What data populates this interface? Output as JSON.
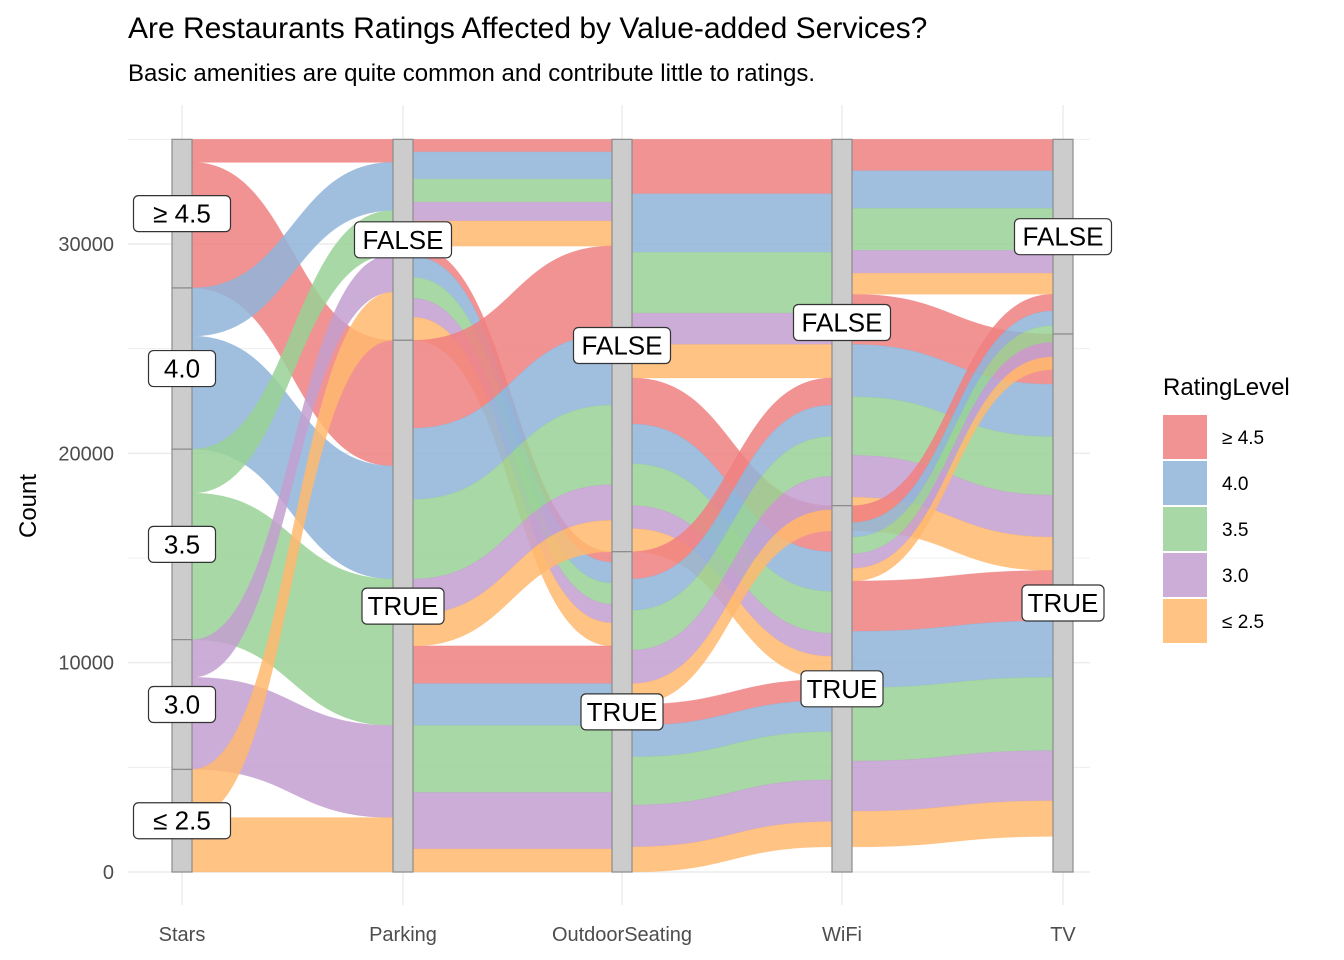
{
  "chart_title": "Are Restaurants Ratings Affected by Value-added Services?",
  "chart_subtitle": "Basic amenities are quite common and contribute little to ratings.",
  "colors": {
    "≥ 4.5": "#f08080",
    "4.0": "#8fb4d9",
    "3.5": "#99d195",
    "3.0": "#c39fd0",
    "≤ 2.5": "#ffb86f",
    "stratum_fill": "#cccccc",
    "stratum_stroke": "#8c8c8c",
    "grid": "#ebebeb"
  },
  "chart_data": {
    "type": "alluvial",
    "ylabel": "Count",
    "xlabel": "",
    "ylim": [
      0,
      35000
    ],
    "y_ticks": [
      0,
      10000,
      20000,
      30000
    ],
    "axes": [
      "Stars",
      "Parking",
      "OutdoorSeating",
      "WiFi",
      "TV"
    ],
    "legend": {
      "title": "RatingLevel",
      "position": "right",
      "levels": [
        "≥ 4.5",
        "4.0",
        "3.5",
        "3.0",
        "≤ 2.5"
      ]
    },
    "strata": [
      {
        "axis": "Stars",
        "levels": [
          {
            "label": "≥ 4.5",
            "min": 27900,
            "max": 35000
          },
          {
            "label": "4.0",
            "min": 20200,
            "max": 27900
          },
          {
            "label": "3.5",
            "min": 11100,
            "max": 20200
          },
          {
            "label": "3.0",
            "min": 4900,
            "max": 11100
          },
          {
            "label": "≤ 2.5",
            "min": 0,
            "max": 4900
          }
        ]
      },
      {
        "axis": "Parking",
        "levels": [
          {
            "label": "FALSE",
            "min": 25400,
            "max": 35000
          },
          {
            "label": "TRUE",
            "min": 0,
            "max": 25400
          }
        ]
      },
      {
        "axis": "OutdoorSeating",
        "levels": [
          {
            "label": "FALSE",
            "min": 15300,
            "max": 35000
          },
          {
            "label": "TRUE",
            "min": 0,
            "max": 15300
          }
        ]
      },
      {
        "axis": "WiFi",
        "levels": [
          {
            "label": "FALSE",
            "min": 17500,
            "max": 35000
          },
          {
            "label": "TRUE",
            "min": 0,
            "max": 17500
          }
        ]
      },
      {
        "axis": "TV",
        "levels": [
          {
            "label": "FALSE",
            "min": 25700,
            "max": 35000
          },
          {
            "label": "TRUE",
            "min": 0,
            "max": 25700
          }
        ]
      }
    ],
    "flows": [
      {
        "from_axis": "Stars",
        "to_axis": "Parking",
        "rating": "≥ 4.5",
        "from": "≥ 4.5",
        "to": "FALSE",
        "count": 1100
      },
      {
        "from_axis": "Stars",
        "to_axis": "Parking",
        "rating": "≥ 4.5",
        "from": "≥ 4.5",
        "to": "TRUE",
        "count": 6000
      },
      {
        "from_axis": "Stars",
        "to_axis": "Parking",
        "rating": "4.0",
        "from": "4.0",
        "to": "FALSE",
        "count": 2300
      },
      {
        "from_axis": "Stars",
        "to_axis": "Parking",
        "rating": "4.0",
        "from": "4.0",
        "to": "TRUE",
        "count": 5400
      },
      {
        "from_axis": "Stars",
        "to_axis": "Parking",
        "rating": "3.5",
        "from": "3.5",
        "to": "FALSE",
        "count": 2100
      },
      {
        "from_axis": "Stars",
        "to_axis": "Parking",
        "rating": "3.5",
        "from": "3.5",
        "to": "TRUE",
        "count": 7000
      },
      {
        "from_axis": "Stars",
        "to_axis": "Parking",
        "rating": "3.0",
        "from": "3.0",
        "to": "FALSE",
        "count": 1800
      },
      {
        "from_axis": "Stars",
        "to_axis": "Parking",
        "rating": "3.0",
        "from": "3.0",
        "to": "TRUE",
        "count": 4400
      },
      {
        "from_axis": "Stars",
        "to_axis": "Parking",
        "rating": "≤ 2.5",
        "from": "≤ 2.5",
        "to": "FALSE",
        "count": 2300
      },
      {
        "from_axis": "Stars",
        "to_axis": "Parking",
        "rating": "≤ 2.5",
        "from": "≤ 2.5",
        "to": "TRUE",
        "count": 2600
      },
      {
        "from_axis": "Parking",
        "to_axis": "OutdoorSeating",
        "rating": "≥ 4.5",
        "from": "FALSE",
        "to": "FALSE",
        "count": 600
      },
      {
        "from_axis": "Parking",
        "to_axis": "OutdoorSeating",
        "rating": "≥ 4.5",
        "from": "FALSE",
        "to": "TRUE",
        "count": 500
      },
      {
        "from_axis": "Parking",
        "to_axis": "OutdoorSeating",
        "rating": "4.0",
        "from": "FALSE",
        "to": "FALSE",
        "count": 1300
      },
      {
        "from_axis": "Parking",
        "to_axis": "OutdoorSeating",
        "rating": "4.0",
        "from": "FALSE",
        "to": "TRUE",
        "count": 1000
      },
      {
        "from_axis": "Parking",
        "to_axis": "OutdoorSeating",
        "rating": "3.5",
        "from": "FALSE",
        "to": "FALSE",
        "count": 1100
      },
      {
        "from_axis": "Parking",
        "to_axis": "OutdoorSeating",
        "rating": "3.5",
        "from": "FALSE",
        "to": "TRUE",
        "count": 1000
      },
      {
        "from_axis": "Parking",
        "to_axis": "OutdoorSeating",
        "rating": "3.0",
        "from": "FALSE",
        "to": "FALSE",
        "count": 900
      },
      {
        "from_axis": "Parking",
        "to_axis": "OutdoorSeating",
        "rating": "3.0",
        "from": "FALSE",
        "to": "TRUE",
        "count": 900
      },
      {
        "from_axis": "Parking",
        "to_axis": "OutdoorSeating",
        "rating": "≤ 2.5",
        "from": "FALSE",
        "to": "FALSE",
        "count": 1200
      },
      {
        "from_axis": "Parking",
        "to_axis": "OutdoorSeating",
        "rating": "≤ 2.5",
        "from": "FALSE",
        "to": "TRUE",
        "count": 1100
      },
      {
        "from_axis": "Parking",
        "to_axis": "OutdoorSeating",
        "rating": "≥ 4.5",
        "from": "TRUE",
        "to": "FALSE",
        "count": 4200
      },
      {
        "from_axis": "Parking",
        "to_axis": "OutdoorSeating",
        "rating": "≥ 4.5",
        "from": "TRUE",
        "to": "TRUE",
        "count": 1800
      },
      {
        "from_axis": "Parking",
        "to_axis": "OutdoorSeating",
        "rating": "4.0",
        "from": "TRUE",
        "to": "FALSE",
        "count": 3400
      },
      {
        "from_axis": "Parking",
        "to_axis": "OutdoorSeating",
        "rating": "4.0",
        "from": "TRUE",
        "to": "TRUE",
        "count": 2000
      },
      {
        "from_axis": "Parking",
        "to_axis": "OutdoorSeating",
        "rating": "3.5",
        "from": "TRUE",
        "to": "FALSE",
        "count": 3800
      },
      {
        "from_axis": "Parking",
        "to_axis": "OutdoorSeating",
        "rating": "3.5",
        "from": "TRUE",
        "to": "TRUE",
        "count": 3200
      },
      {
        "from_axis": "Parking",
        "to_axis": "OutdoorSeating",
        "rating": "3.0",
        "from": "TRUE",
        "to": "FALSE",
        "count": 1700
      },
      {
        "from_axis": "Parking",
        "to_axis": "OutdoorSeating",
        "rating": "3.0",
        "from": "TRUE",
        "to": "TRUE",
        "count": 2700
      },
      {
        "from_axis": "Parking",
        "to_axis": "OutdoorSeating",
        "rating": "≤ 2.5",
        "from": "TRUE",
        "to": "FALSE",
        "count": 1500
      },
      {
        "from_axis": "Parking",
        "to_axis": "OutdoorSeating",
        "rating": "≤ 2.5",
        "from": "TRUE",
        "to": "TRUE",
        "count": 1100
      },
      {
        "from_axis": "OutdoorSeating",
        "to_axis": "WiFi",
        "rating": "≥ 4.5",
        "from": "FALSE",
        "to": "FALSE",
        "count": 2600
      },
      {
        "from_axis": "OutdoorSeating",
        "to_axis": "WiFi",
        "rating": "≥ 4.5",
        "from": "FALSE",
        "to": "TRUE",
        "count": 2200
      },
      {
        "from_axis": "OutdoorSeating",
        "to_axis": "WiFi",
        "rating": "4.0",
        "from": "FALSE",
        "to": "FALSE",
        "count": 2800
      },
      {
        "from_axis": "OutdoorSeating",
        "to_axis": "WiFi",
        "rating": "4.0",
        "from": "FALSE",
        "to": "TRUE",
        "count": 1900
      },
      {
        "from_axis": "OutdoorSeating",
        "to_axis": "WiFi",
        "rating": "3.5",
        "from": "FALSE",
        "to": "FALSE",
        "count": 2900
      },
      {
        "from_axis": "OutdoorSeating",
        "to_axis": "WiFi",
        "rating": "3.5",
        "from": "FALSE",
        "to": "TRUE",
        "count": 2000
      },
      {
        "from_axis": "OutdoorSeating",
        "to_axis": "WiFi",
        "rating": "3.0",
        "from": "FALSE",
        "to": "FALSE",
        "count": 1500
      },
      {
        "from_axis": "OutdoorSeating",
        "to_axis": "WiFi",
        "rating": "3.0",
        "from": "FALSE",
        "to": "TRUE",
        "count": 1100
      },
      {
        "from_axis": "OutdoorSeating",
        "to_axis": "WiFi",
        "rating": "≤ 2.5",
        "from": "FALSE",
        "to": "FALSE",
        "count": 1600
      },
      {
        "from_axis": "OutdoorSeating",
        "to_axis": "WiFi",
        "rating": "≤ 2.5",
        "from": "FALSE",
        "to": "TRUE",
        "count": 1100
      },
      {
        "from_axis": "OutdoorSeating",
        "to_axis": "WiFi",
        "rating": "≥ 4.5",
        "from": "TRUE",
        "to": "FALSE",
        "count": 1300
      },
      {
        "from_axis": "OutdoorSeating",
        "to_axis": "WiFi",
        "rating": "≥ 4.5",
        "from": "TRUE",
        "to": "TRUE",
        "count": 1000
      },
      {
        "from_axis": "OutdoorSeating",
        "to_axis": "WiFi",
        "rating": "4.0",
        "from": "TRUE",
        "to": "FALSE",
        "count": 1500
      },
      {
        "from_axis": "OutdoorSeating",
        "to_axis": "WiFi",
        "rating": "4.0",
        "from": "TRUE",
        "to": "TRUE",
        "count": 1500
      },
      {
        "from_axis": "OutdoorSeating",
        "to_axis": "WiFi",
        "rating": "3.5",
        "from": "TRUE",
        "to": "FALSE",
        "count": 1900
      },
      {
        "from_axis": "OutdoorSeating",
        "to_axis": "WiFi",
        "rating": "3.5",
        "from": "TRUE",
        "to": "TRUE",
        "count": 2300
      },
      {
        "from_axis": "OutdoorSeating",
        "to_axis": "WiFi",
        "rating": "3.0",
        "from": "TRUE",
        "to": "FALSE",
        "count": 1600
      },
      {
        "from_axis": "OutdoorSeating",
        "to_axis": "WiFi",
        "rating": "3.0",
        "from": "TRUE",
        "to": "TRUE",
        "count": 2000
      },
      {
        "from_axis": "OutdoorSeating",
        "to_axis": "WiFi",
        "rating": "≤ 2.5",
        "from": "TRUE",
        "to": "FALSE",
        "count": 1000
      },
      {
        "from_axis": "OutdoorSeating",
        "to_axis": "WiFi",
        "rating": "≤ 2.5",
        "from": "TRUE",
        "to": "TRUE",
        "count": 1200
      },
      {
        "from_axis": "WiFi",
        "to_axis": "TV",
        "rating": "≥ 4.5",
        "from": "FALSE",
        "to": "FALSE",
        "count": 1500
      },
      {
        "from_axis": "WiFi",
        "to_axis": "TV",
        "rating": "≥ 4.5",
        "from": "FALSE",
        "to": "TRUE",
        "count": 2400
      },
      {
        "from_axis": "WiFi",
        "to_axis": "TV",
        "rating": "4.0",
        "from": "FALSE",
        "to": "FALSE",
        "count": 1800
      },
      {
        "from_axis": "WiFi",
        "to_axis": "TV",
        "rating": "4.0",
        "from": "FALSE",
        "to": "TRUE",
        "count": 2500
      },
      {
        "from_axis": "WiFi",
        "to_axis": "TV",
        "rating": "3.5",
        "from": "FALSE",
        "to": "FALSE",
        "count": 2000
      },
      {
        "from_axis": "WiFi",
        "to_axis": "TV",
        "rating": "3.5",
        "from": "FALSE",
        "to": "TRUE",
        "count": 2800
      },
      {
        "from_axis": "WiFi",
        "to_axis": "TV",
        "rating": "3.0",
        "from": "FALSE",
        "to": "FALSE",
        "count": 1100
      },
      {
        "from_axis": "WiFi",
        "to_axis": "TV",
        "rating": "3.0",
        "from": "FALSE",
        "to": "TRUE",
        "count": 2000
      },
      {
        "from_axis": "WiFi",
        "to_axis": "TV",
        "rating": "≤ 2.5",
        "from": "FALSE",
        "to": "FALSE",
        "count": 1000
      },
      {
        "from_axis": "WiFi",
        "to_axis": "TV",
        "rating": "≤ 2.5",
        "from": "FALSE",
        "to": "TRUE",
        "count": 1600
      },
      {
        "from_axis": "WiFi",
        "to_axis": "TV",
        "rating": "≥ 4.5",
        "from": "TRUE",
        "to": "FALSE",
        "count": 800
      },
      {
        "from_axis": "WiFi",
        "to_axis": "TV",
        "rating": "≥ 4.5",
        "from": "TRUE",
        "to": "TRUE",
        "count": 2400
      },
      {
        "from_axis": "WiFi",
        "to_axis": "TV",
        "rating": "4.0",
        "from": "TRUE",
        "to": "FALSE",
        "count": 700
      },
      {
        "from_axis": "WiFi",
        "to_axis": "TV",
        "rating": "4.0",
        "from": "TRUE",
        "to": "TRUE",
        "count": 2700
      },
      {
        "from_axis": "WiFi",
        "to_axis": "TV",
        "rating": "3.5",
        "from": "TRUE",
        "to": "FALSE",
        "count": 800
      },
      {
        "from_axis": "WiFi",
        "to_axis": "TV",
        "rating": "3.5",
        "from": "TRUE",
        "to": "TRUE",
        "count": 3500
      },
      {
        "from_axis": "WiFi",
        "to_axis": "TV",
        "rating": "3.0",
        "from": "TRUE",
        "to": "FALSE",
        "count": 700
      },
      {
        "from_axis": "WiFi",
        "to_axis": "TV",
        "rating": "3.0",
        "from": "TRUE",
        "to": "TRUE",
        "count": 2400
      },
      {
        "from_axis": "WiFi",
        "to_axis": "TV",
        "rating": "≤ 2.5",
        "from": "TRUE",
        "to": "FALSE",
        "count": 600
      },
      {
        "from_axis": "WiFi",
        "to_axis": "TV",
        "rating": "≤ 2.5",
        "from": "TRUE",
        "to": "TRUE",
        "count": 1700
      }
    ]
  }
}
